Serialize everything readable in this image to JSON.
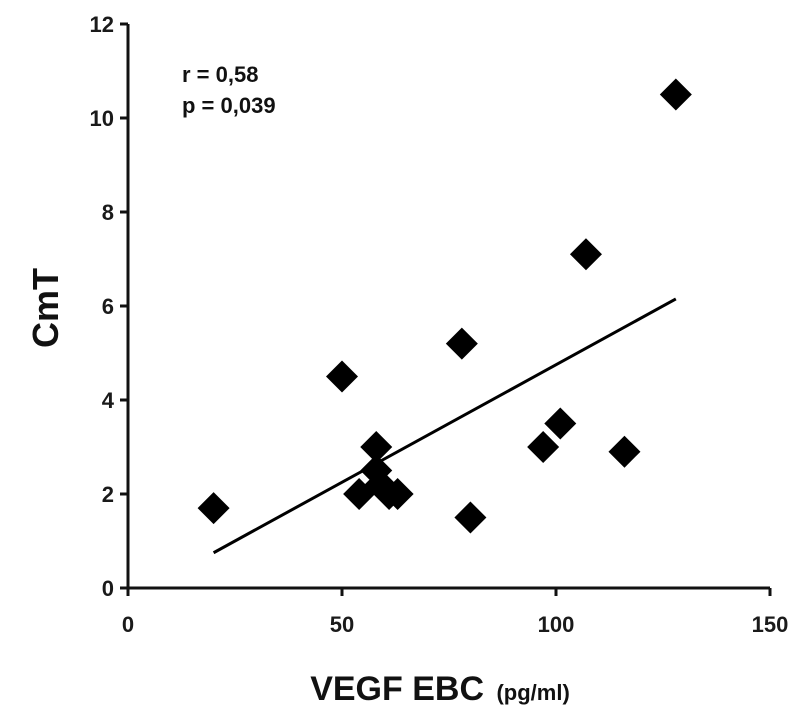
{
  "chart_data": {
    "type": "scatter",
    "x": [
      20,
      50,
      54,
      58,
      58,
      59,
      61,
      63,
      78,
      80,
      97,
      101,
      107,
      116,
      128
    ],
    "y": [
      1.7,
      4.5,
      2.0,
      2.5,
      3.0,
      2.2,
      2.0,
      2.0,
      5.2,
      1.5,
      3.0,
      3.5,
      7.1,
      2.9,
      10.5
    ],
    "trendline": {
      "x": [
        20,
        128
      ],
      "y": [
        0.75,
        6.15
      ]
    },
    "xlim": [
      0,
      150
    ],
    "ylim": [
      0,
      12
    ],
    "xticks": [
      "0",
      "50",
      "100",
      "150"
    ],
    "yticks": [
      "0",
      "2",
      "4",
      "6",
      "8",
      "10",
      "12"
    ],
    "xticks_values": [
      0,
      50,
      100,
      150
    ],
    "yticks_values": [
      0,
      2,
      4,
      6,
      8,
      10,
      12
    ],
    "xlabel": "VEGF EBC",
    "xlabel_unit": "(pg/ml)",
    "ylabel": "CmT",
    "annotations": [
      "r = 0,58",
      "p = 0,039"
    ],
    "grid": false,
    "marker": "diamond",
    "color": "#000000"
  }
}
